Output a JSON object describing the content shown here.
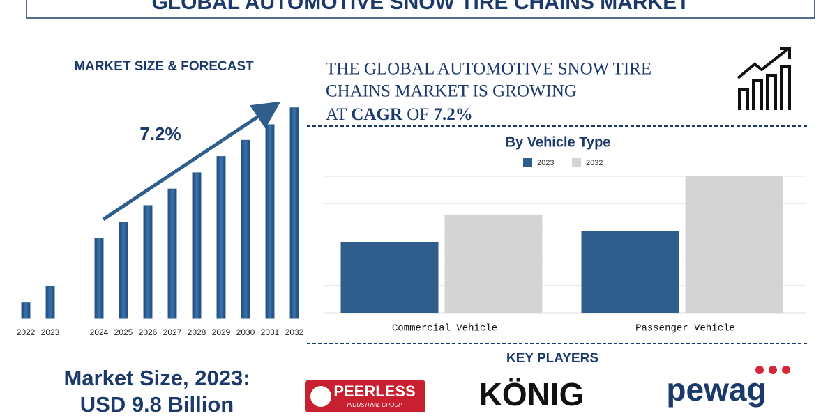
{
  "header": {
    "title": "GLOBAL AUTOMOTIVE SNOW TIRE CHAINS MARKET"
  },
  "headline": {
    "lines": [
      "THE GLOBAL AUTOMOTIVE SNOW TIRE",
      "CHAINS MARKET IS GROWING"
    ],
    "prefix": "AT",
    "emphasis": "CAGR",
    "middle": "OF",
    "rate": "7.2%"
  },
  "market_size": {
    "label": "Market Size, 2023:",
    "value": "USD 9.8 Billion"
  },
  "key_players": {
    "title": "KEY PLAYERS",
    "logos": [
      "PEERLESS",
      "INDUSTRIAL GROUP",
      "KÖNIG",
      "pewag"
    ]
  },
  "chart_data": [
    {
      "type": "bar",
      "title": "MARKET SIZE & FORECAST",
      "annotation": "7.2%",
      "categories": [
        "2022",
        "2023",
        "2024",
        "2025",
        "2026",
        "2027",
        "2028",
        "2029",
        "2030",
        "2031",
        "2032"
      ],
      "values": [
        4.8,
        9.8,
        24.8,
        29.6,
        34.8,
        39.9,
        44.9,
        49.9,
        54.9,
        59.7,
        64.9
      ],
      "color": "#2c5f95",
      "ylim": [
        0,
        70
      ]
    },
    {
      "type": "grouped_bar",
      "title": "By Vehicle Type",
      "categories": [
        "Commercial Vehicle",
        "Passenger Vehicle"
      ],
      "series": [
        {
          "name": "2023",
          "color": "#2f5d8c",
          "values": [
            2.6,
            3.0
          ]
        },
        {
          "name": "2032",
          "color": "#d4d4d4",
          "values": [
            3.6,
            5.0
          ]
        }
      ],
      "ylim": [
        0,
        5
      ],
      "yticks": [
        0,
        1,
        2,
        3,
        4,
        5
      ],
      "grid": true
    }
  ]
}
